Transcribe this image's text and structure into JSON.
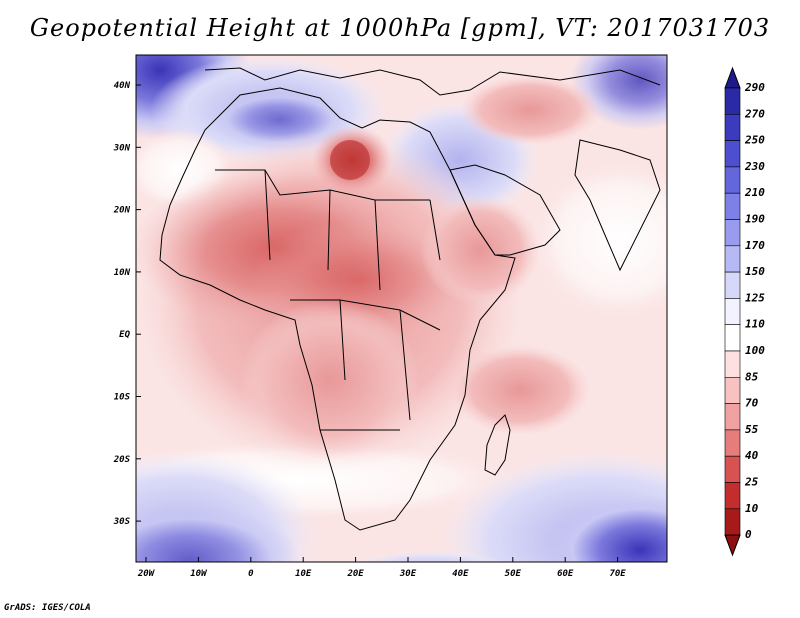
{
  "title": "Geopotential Height at 1000hPa [gpm], VT: 2017031703",
  "credit": "GrADS: IGES/COLA",
  "map": {
    "lat_labels": [
      "40N",
      "30N",
      "20N",
      "10N",
      "EQ",
      "10S",
      "20S",
      "30S"
    ],
    "lon_labels": [
      "20W",
      "10W",
      "0",
      "10E",
      "20E",
      "30E",
      "40E",
      "50E",
      "60E",
      "70E"
    ]
  },
  "colorbar": {
    "labels": [
      "290",
      "270",
      "250",
      "230",
      "210",
      "190",
      "170",
      "150",
      "125",
      "110",
      "100",
      "85",
      "70",
      "55",
      "40",
      "25",
      "10",
      "0"
    ],
    "colors": [
      "#1e1a8c",
      "#2b2aa6",
      "#3b3bc0",
      "#4d4ed0",
      "#6466dc",
      "#7d80e6",
      "#999cee",
      "#b7b9f4",
      "#d6d8fa",
      "#f2f3fe",
      "#ffffff",
      "#fde0e0",
      "#f8c2c2",
      "#f0a2a2",
      "#e67c7c",
      "#d95252",
      "#c42d2d",
      "#a81a1a",
      "#8c1010"
    ]
  }
}
